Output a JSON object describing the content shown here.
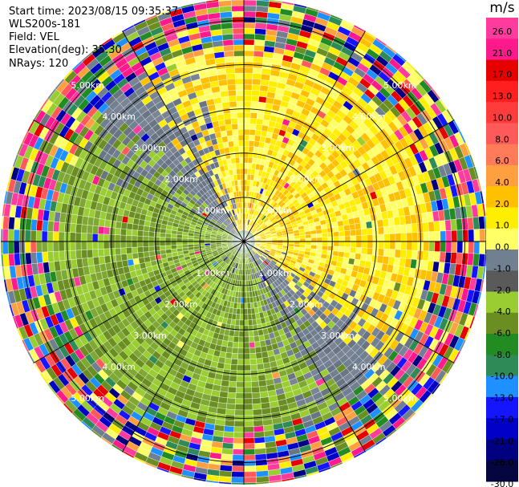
{
  "header": {
    "start_time": "Start time: 2023/08/15 09:35:37",
    "instrument": "WLS200s-181",
    "field": "Field: VEL",
    "elevation": "Elevation(deg): 35.30",
    "nrays": "NRays: 120"
  },
  "colorbar": {
    "unit": "m/s",
    "ticks": [
      "26.0",
      "21.0",
      "17.0",
      "13.0",
      "10.0",
      "8.0",
      "6.0",
      "4.0",
      "2.0",
      "1.0",
      "0.0",
      "-1.0",
      "-2.0",
      "-4.0",
      "-6.0",
      "-8.0",
      "-10.0",
      "-13.0",
      "-17.0",
      "-21.0",
      "-26.0",
      "-30.0"
    ],
    "segment_colors": [
      "#ff3c9e",
      "#ff1a8c",
      "#e60000",
      "#ff1f1f",
      "#ff3c3c",
      "#ff5a5a",
      "#ff7b5a",
      "#ffa040",
      "#ffc000",
      "#ffee00",
      "#ffff66",
      "#708090",
      "#5a5a5a",
      "#9acd32",
      "#6b8e23",
      "#228b22",
      "#2e8b57",
      "#1e90ff",
      "#1515ff",
      "#0000c8",
      "#000080",
      "#050540"
    ]
  },
  "chart_data": {
    "type": "ppi",
    "field": "VEL",
    "units": "m/s",
    "nrays": 120,
    "elevation_deg": 35.3,
    "vmin": -30.0,
    "vmax": 30.0,
    "range_rings_km": [
      1.0,
      2.0,
      3.0,
      4.0,
      5.0
    ],
    "ring_labels": [
      "1.00km",
      "2.00km",
      "3.00km",
      "4.00km",
      "5.00km"
    ],
    "spokes_deg": [
      0,
      30,
      60,
      90,
      120,
      150,
      180,
      210,
      240,
      270,
      300,
      330
    ],
    "max_range_km": 5.5,
    "pattern": {
      "clean_range_km": 4.3,
      "inner_core_km": 0.35,
      "toward_azimuth_deg": 50,
      "away_azimuth_deg": 230,
      "positive_palette": [
        "#ffff66",
        "#ffee00",
        "#ffc000"
      ],
      "near_zero_palette": [
        "#708090",
        "#7a8494",
        "#6a7584"
      ],
      "negative_palette": [
        "#9acd32",
        "#6b8e23",
        "#7fa832"
      ],
      "noise_palette": [
        "#ff1a8c",
        "#e60000",
        "#ff5a5a",
        "#ffa040",
        "#ffee00",
        "#1515ff",
        "#000080",
        "#228b22",
        "#6b8e23",
        "#9acd32",
        "#2e8b57",
        "#708090",
        "#ff3c9e",
        "#1e90ff",
        "#0000c8",
        "#ffff66"
      ]
    }
  }
}
